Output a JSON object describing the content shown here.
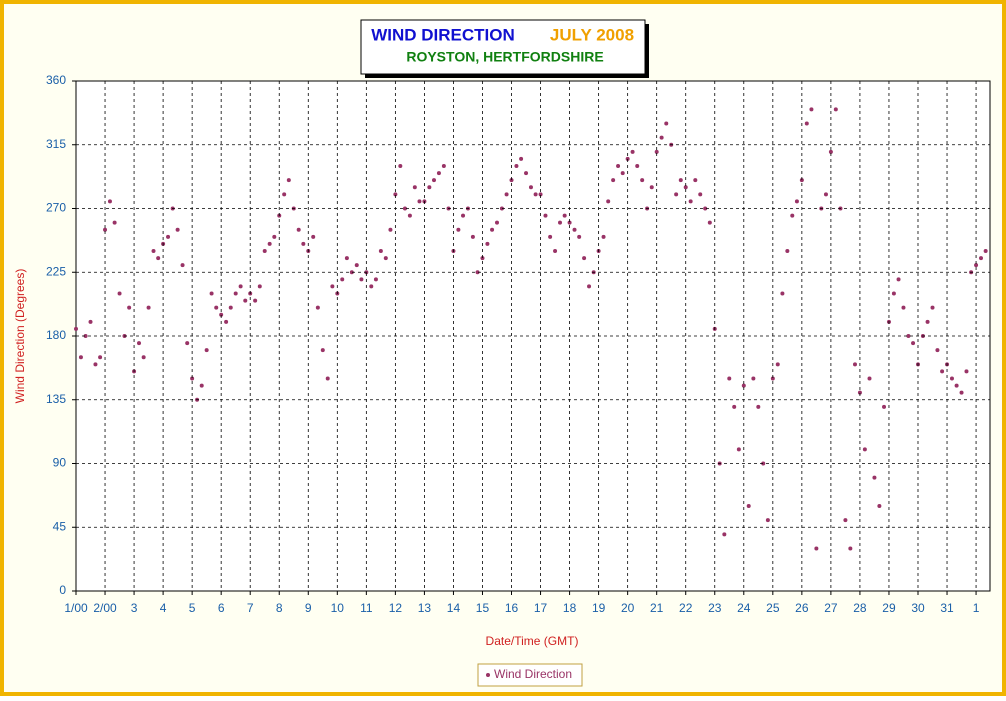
{
  "chart_data": {
    "type": "scatter",
    "title": "WIND DIRECTION",
    "title_period": "JULY 2008",
    "subtitle": "ROYSTON, HERTFORDSHIRE",
    "x_label": "Date/Time (GMT)",
    "y_label": "Wind Direction (Degrees)",
    "xlim": [
      1,
      32.48
    ],
    "ylim": [
      0,
      360
    ],
    "xticks": [
      {
        "value": 1,
        "label": "1/00"
      },
      {
        "value": 2,
        "label": "2/00"
      },
      3,
      4,
      5,
      6,
      7,
      8,
      9,
      10,
      11,
      12,
      13,
      14,
      15,
      16,
      17,
      18,
      19,
      20,
      21,
      22,
      23,
      24,
      25,
      26,
      27,
      28,
      29,
      30,
      31,
      {
        "value": 32,
        "label": "1"
      }
    ],
    "yticks": [
      0,
      45,
      90,
      135,
      180,
      225,
      270,
      315,
      360
    ],
    "grid": true,
    "legend": "bottom",
    "x": [
      1,
      1.17,
      1.33,
      1.5,
      1.67,
      1.83,
      2,
      2.17,
      2.33,
      2.5,
      2.67,
      2.83,
      3,
      3.17,
      3.33,
      3.5,
      3.67,
      3.83,
      4,
      4.17,
      4.33,
      4.5,
      4.67,
      4.83,
      5,
      5.17,
      5.33,
      5.5,
      5.67,
      5.83,
      6,
      6.17,
      6.33,
      6.5,
      6.67,
      6.83,
      7,
      7.17,
      7.33,
      7.5,
      7.67,
      7.83,
      8,
      8.17,
      8.33,
      8.5,
      8.67,
      8.83,
      9,
      9.17,
      9.33,
      9.5,
      9.67,
      9.83,
      10,
      10.17,
      10.33,
      10.5,
      10.67,
      10.83,
      11,
      11.17,
      11.33,
      11.5,
      11.67,
      11.83,
      12,
      12.17,
      12.33,
      12.5,
      12.67,
      12.83,
      13,
      13.17,
      13.33,
      13.5,
      13.67,
      13.83,
      14,
      14.17,
      14.33,
      14.5,
      14.67,
      14.83,
      15,
      15.17,
      15.33,
      15.5,
      15.67,
      15.83,
      16,
      16.17,
      16.33,
      16.5,
      16.67,
      16.83,
      17,
      17.17,
      17.33,
      17.5,
      17.67,
      17.83,
      18,
      18.17,
      18.33,
      18.5,
      18.67,
      18.83,
      19,
      19.17,
      19.33,
      19.5,
      19.67,
      19.83,
      20,
      20.17,
      20.33,
      20.5,
      20.67,
      20.83,
      21,
      21.17,
      21.33,
      21.5,
      21.67,
      21.83,
      22,
      22.17,
      22.33,
      22.5,
      22.67,
      22.83,
      23,
      23.17,
      23.33,
      23.5,
      23.67,
      23.83,
      24,
      24.17,
      24.33,
      24.5,
      24.67,
      24.83,
      25,
      25.17,
      25.33,
      25.5,
      25.67,
      25.83,
      26,
      26.17,
      26.33,
      26.5,
      26.67,
      26.83,
      27,
      27.17,
      27.33,
      27.5,
      27.67,
      27.83,
      28,
      28.17,
      28.33,
      28.5,
      28.67,
      28.83,
      29,
      29.17,
      29.33,
      29.5,
      29.67,
      29.83,
      30,
      30.17,
      30.33,
      30.5,
      30.67,
      30.83,
      31,
      31.17,
      31.33,
      31.5,
      31.67,
      31.83,
      32,
      32.17,
      32.33
    ],
    "series": [
      {
        "name": "Wind Direction",
        "color": "#993366",
        "values": [
          185,
          165,
          180,
          190,
          160,
          165,
          255,
          275,
          260,
          210,
          180,
          200,
          155,
          175,
          165,
          200,
          240,
          235,
          245,
          250,
          270,
          255,
          230,
          175,
          150,
          135,
          145,
          170,
          210,
          200,
          195,
          190,
          200,
          210,
          215,
          205,
          210,
          205,
          215,
          240,
          245,
          250,
          265,
          280,
          290,
          270,
          255,
          245,
          240,
          250,
          200,
          170,
          150,
          215,
          210,
          220,
          235,
          225,
          230,
          220,
          225,
          215,
          220,
          240,
          235,
          255,
          280,
          300,
          270,
          265,
          285,
          275,
          275,
          285,
          290,
          295,
          300,
          270,
          240,
          255,
          265,
          270,
          250,
          225,
          235,
          245,
          255,
          260,
          270,
          280,
          290,
          300,
          305,
          295,
          285,
          280,
          280,
          265,
          250,
          240,
          260,
          265,
          260,
          255,
          250,
          235,
          215,
          225,
          240,
          250,
          275,
          290,
          300,
          295,
          305,
          310,
          300,
          290,
          270,
          285,
          310,
          320,
          330,
          315,
          280,
          290,
          285,
          275,
          290,
          280,
          270,
          260,
          185,
          90,
          40,
          150,
          130,
          100,
          145,
          60,
          150,
          130,
          90,
          50,
          150,
          160,
          210,
          240,
          265,
          275,
          290,
          330,
          340,
          30,
          270,
          280,
          310,
          340,
          270,
          50,
          30,
          160,
          140,
          100,
          150,
          80,
          60,
          130,
          190,
          210,
          220,
          200,
          180,
          175,
          160,
          180,
          190,
          200,
          170,
          155,
          160,
          150,
          145,
          140,
          155,
          225,
          230,
          235,
          240
        ]
      }
    ]
  }
}
